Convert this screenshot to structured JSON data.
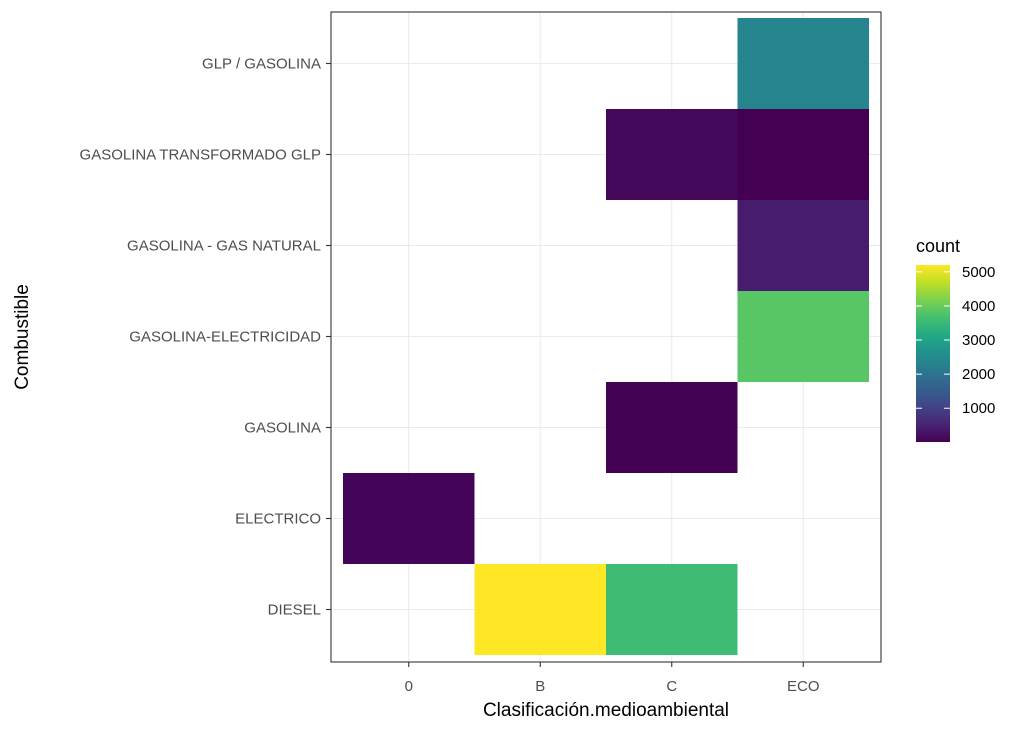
{
  "chart_data": {
    "type": "heatmap",
    "xlabel": "Clasificación.medioambiental",
    "ylabel": "Combustible",
    "x_categories": [
      "0",
      "B",
      "C",
      "ECO"
    ],
    "y_categories": [
      "DIESEL",
      "ELECTRICO",
      "GASOLINA",
      "GASOLINA-ELECTRICIDAD",
      "GASOLINA - GAS NATURAL",
      "GASOLINA TRANSFORMADO GLP",
      "GLP / GASOLINA"
    ],
    "cells": [
      {
        "x": "B",
        "y": "DIESEL",
        "value": 5200
      },
      {
        "x": "C",
        "y": "DIESEL",
        "value": 3600
      },
      {
        "x": "0",
        "y": "ELECTRICO",
        "value": 60
      },
      {
        "x": "C",
        "y": "GASOLINA",
        "value": 20
      },
      {
        "x": "ECO",
        "y": "GASOLINA-ELECTRICIDAD",
        "value": 3850
      },
      {
        "x": "ECO",
        "y": "GASOLINA - GAS NATURAL",
        "value": 400
      },
      {
        "x": "C",
        "y": "GASOLINA TRANSFORMADO GLP",
        "value": 100
      },
      {
        "x": "ECO",
        "y": "GASOLINA TRANSFORMADO GLP",
        "value": 10
      },
      {
        "x": "ECO",
        "y": "GLP / GASOLINA",
        "value": 2350
      }
    ],
    "legend": {
      "title": "count",
      "ticks": [
        1000,
        2000,
        3000,
        4000,
        5000
      ],
      "range": [
        10,
        5200
      ],
      "colormap": "viridis",
      "placement": "right"
    },
    "grid": true
  }
}
